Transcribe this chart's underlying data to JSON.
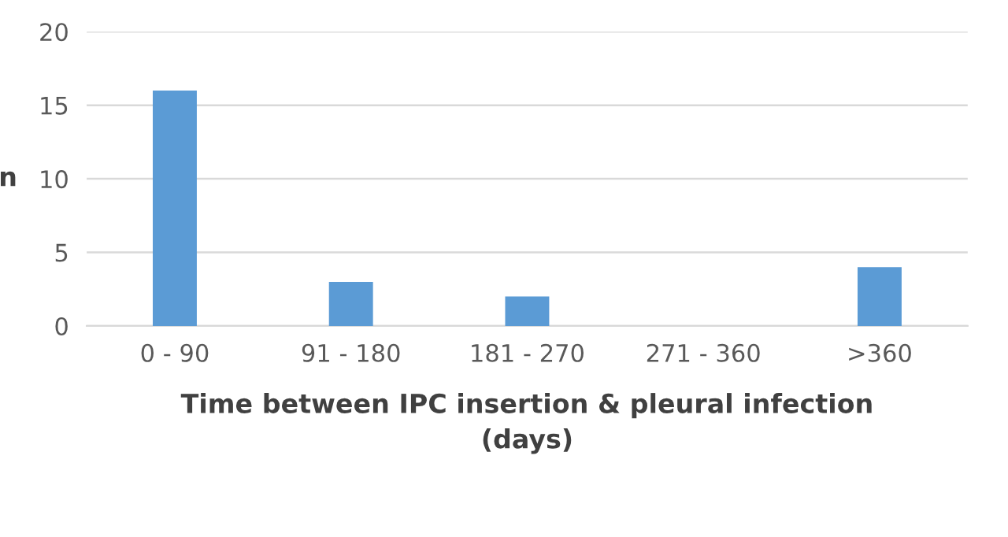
{
  "chart_data": {
    "type": "bar",
    "xlabel": "Time between IPC insertion & pleural infection\n(days)",
    "ylabel": "n",
    "categories": [
      "0 - 90",
      "91 - 180",
      "181 - 270",
      "271 - 360",
      ">360"
    ],
    "values": [
      16,
      3,
      2,
      0,
      4
    ],
    "color": "#5b9bd5",
    "ylim": [
      0,
      20
    ],
    "yticks": [
      0,
      5,
      10,
      15,
      20
    ],
    "grid": "y",
    "legend": false
  }
}
